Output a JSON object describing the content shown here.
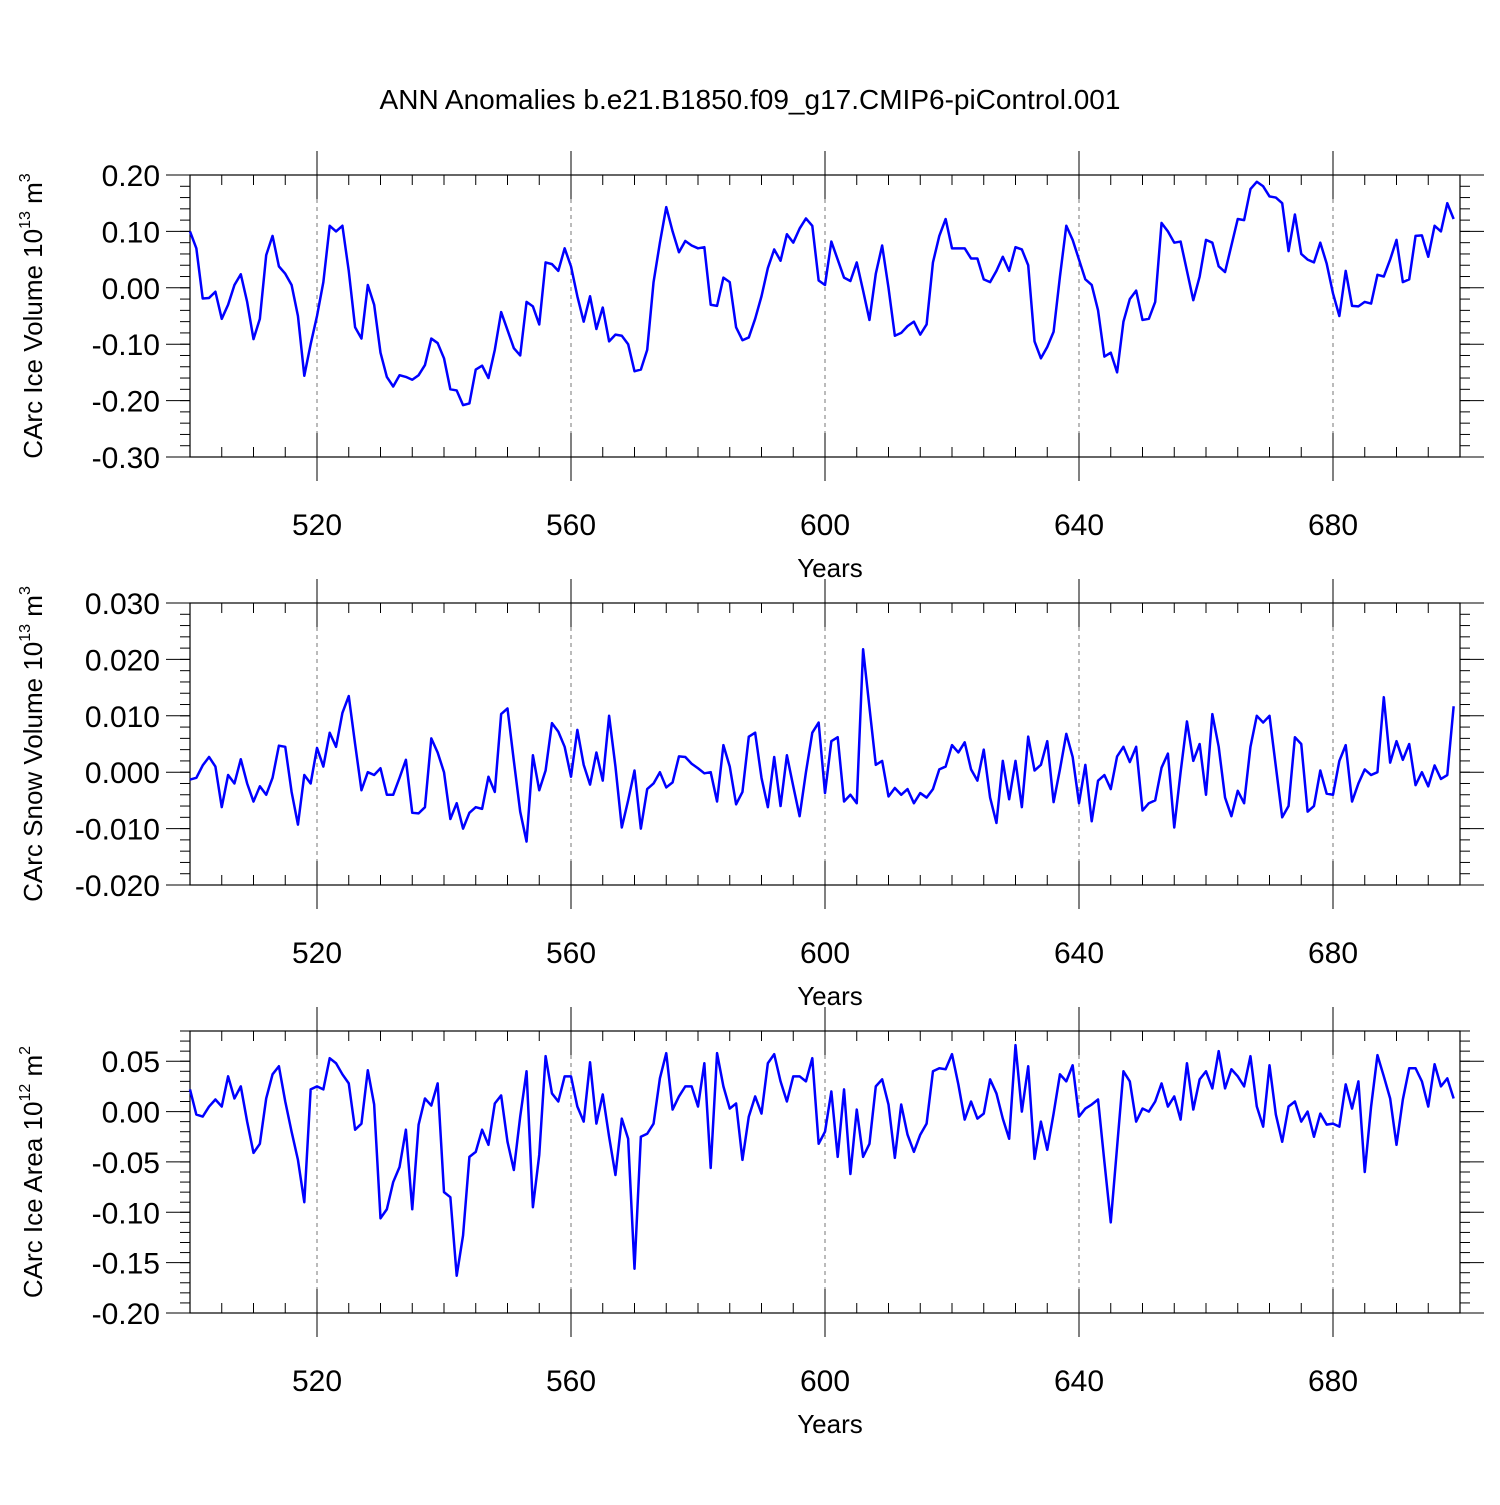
{
  "title": "ANN Anomalies b.e21.B1850.f09_g17.CMIP6-piControl.001",
  "chart_data": [
    {
      "type": "line",
      "id": "ice-volume",
      "ylabel_text": "CArc Ice Volume 10",
      "ylabel_exp": "13",
      "ylabel_unit": " m",
      "ylabel_unit_exp": "3",
      "xlabel": "Years",
      "xlim": [
        500,
        700
      ],
      "ylim": [
        -0.3,
        0.2
      ],
      "xticks": [
        520,
        560,
        600,
        640,
        680
      ],
      "yticks": [
        -0.3,
        -0.2,
        -0.1,
        0.0,
        0.1,
        0.2
      ],
      "ytick_labels": [
        "-0.30",
        "-0.20",
        "-0.10",
        "0.00",
        "0.10",
        "0.20"
      ],
      "color": "#0000ff",
      "x_start": 500,
      "values": [
        0.1,
        0.07,
        -0.019,
        -0.018,
        -0.007,
        -0.055,
        -0.03,
        0.005,
        0.024,
        -0.025,
        -0.091,
        -0.055,
        0.058,
        0.092,
        0.038,
        0.025,
        0.005,
        -0.05,
        -0.156,
        -0.1,
        -0.05,
        0.01,
        0.11,
        0.1,
        0.11,
        0.03,
        -0.07,
        -0.09,
        0.005,
        -0.03,
        -0.115,
        -0.158,
        -0.175,
        -0.155,
        -0.158,
        -0.163,
        -0.155,
        -0.137,
        -0.09,
        -0.098,
        -0.125,
        -0.18,
        -0.182,
        -0.208,
        -0.205,
        -0.145,
        -0.138,
        -0.16,
        -0.11,
        -0.043,
        -0.075,
        -0.107,
        -0.12,
        -0.025,
        -0.033,
        -0.065,
        0.045,
        0.042,
        0.03,
        0.07,
        0.038,
        -0.015,
        -0.06,
        -0.015,
        -0.073,
        -0.035,
        -0.095,
        -0.083,
        -0.085,
        -0.1,
        -0.148,
        -0.145,
        -0.11,
        0.01,
        0.08,
        0.143,
        0.1,
        0.063,
        0.083,
        0.075,
        0.07,
        0.072,
        -0.03,
        -0.032,
        0.018,
        0.01,
        -0.07,
        -0.093,
        -0.088,
        -0.055,
        -0.015,
        0.035,
        0.068,
        0.048,
        0.095,
        0.08,
        0.105,
        0.123,
        0.11,
        0.013,
        0.005,
        0.082,
        0.05,
        0.018,
        0.012,
        0.045,
        -0.005,
        -0.057,
        0.025,
        0.075,
        0.0,
        -0.085,
        -0.08,
        -0.068,
        -0.06,
        -0.083,
        -0.065,
        0.045,
        0.092,
        0.122,
        0.07,
        0.07,
        0.07,
        0.052,
        0.052,
        0.015,
        0.01,
        0.03,
        0.055,
        0.03,
        0.072,
        0.068,
        0.04,
        -0.095,
        -0.125,
        -0.105,
        -0.078,
        0.02,
        0.11,
        0.085,
        0.05,
        0.015,
        0.005,
        -0.04,
        -0.122,
        -0.115,
        -0.15,
        -0.06,
        -0.02,
        -0.005,
        -0.057,
        -0.055,
        -0.025,
        0.115,
        0.1,
        0.08,
        0.082,
        0.03,
        -0.022,
        0.02,
        0.085,
        0.08,
        0.038,
        0.028,
        0.075,
        0.122,
        0.12,
        0.175,
        0.188,
        0.18,
        0.162,
        0.16,
        0.15,
        0.065,
        0.13,
        0.06,
        0.05,
        0.045,
        0.08,
        0.043,
        -0.01,
        -0.05,
        0.03,
        -0.032,
        -0.033,
        -0.025,
        -0.028,
        0.023,
        0.02,
        0.05,
        0.085,
        0.01,
        0.015,
        0.092,
        0.093,
        0.055,
        0.11,
        0.1,
        0.15,
        0.122
      ]
    },
    {
      "type": "line",
      "id": "snow-volume",
      "ylabel_text": "CArc Snow Volume 10",
      "ylabel_exp": "13",
      "ylabel_unit": " m",
      "ylabel_unit_exp": "3",
      "xlabel": "Years",
      "xlim": [
        500,
        700
      ],
      "ylim": [
        -0.02,
        0.03
      ],
      "xticks": [
        520,
        560,
        600,
        640,
        680
      ],
      "yticks": [
        -0.02,
        -0.01,
        0.0,
        0.01,
        0.02,
        0.03
      ],
      "ytick_labels": [
        "-0.020",
        "-0.010",
        "0.000",
        "0.010",
        "0.020",
        "0.030"
      ],
      "color": "#0000ff",
      "x_start": 500,
      "values": [
        -0.0013,
        -0.001,
        0.0012,
        0.0027,
        0.001,
        -0.0062,
        -0.0005,
        -0.002,
        0.0023,
        -0.002,
        -0.0052,
        -0.0025,
        -0.004,
        -0.001,
        0.0047,
        0.0045,
        -0.0035,
        -0.0093,
        -0.0005,
        -0.002,
        0.0043,
        0.001,
        0.007,
        0.0045,
        0.0105,
        0.0135,
        0.005,
        -0.0032,
        0.0,
        -0.0005,
        0.0007,
        -0.004,
        -0.004,
        -0.001,
        0.0022,
        -0.0072,
        -0.0073,
        -0.0062,
        0.006,
        0.0035,
        0.0,
        -0.0083,
        -0.0055,
        -0.01,
        -0.0072,
        -0.0062,
        -0.0065,
        -0.0008,
        -0.0035,
        0.0103,
        0.0113,
        0.002,
        -0.007,
        -0.0123,
        0.003,
        -0.0032,
        0.0003,
        0.0087,
        0.0072,
        0.0045,
        -0.0008,
        0.0075,
        0.0013,
        -0.0022,
        0.0035,
        -0.0015,
        0.01,
        0.001,
        -0.0098,
        -0.005,
        0.0003,
        -0.01,
        -0.003,
        -0.002,
        0.0,
        -0.0027,
        -0.0018,
        0.0028,
        0.0027,
        0.0015,
        0.0007,
        -0.0002,
        0.0,
        -0.0052,
        0.0048,
        0.001,
        -0.0057,
        -0.0035,
        0.0063,
        0.007,
        -0.001,
        -0.0062,
        0.0027,
        -0.006,
        0.003,
        -0.0025,
        -0.0078,
        0.0,
        0.007,
        0.0088,
        -0.0037,
        0.0055,
        0.0062,
        -0.0052,
        -0.004,
        -0.0055,
        0.0218,
        0.0115,
        0.0013,
        0.002,
        -0.0043,
        -0.0028,
        -0.004,
        -0.003,
        -0.0055,
        -0.0037,
        -0.0045,
        -0.003,
        0.0005,
        0.001,
        0.0048,
        0.0035,
        0.0053,
        0.0005,
        -0.0015,
        0.004,
        -0.0045,
        -0.009,
        0.002,
        -0.0048,
        0.002,
        -0.0062,
        0.0063,
        0.0003,
        0.0013,
        0.0055,
        -0.0053,
        0.0005,
        0.0068,
        0.0027,
        -0.0055,
        0.0013,
        -0.0087,
        -0.0015,
        -0.0005,
        -0.003,
        0.0028,
        0.0045,
        0.0018,
        0.0045,
        -0.0068,
        -0.0055,
        -0.005,
        0.0008,
        0.0033,
        -0.0098,
        0.0,
        0.009,
        0.002,
        0.005,
        -0.004,
        0.0103,
        0.0045,
        -0.0045,
        -0.0078,
        -0.0033,
        -0.0055,
        0.0045,
        0.01,
        0.0088,
        0.01,
        0.001,
        -0.008,
        -0.006,
        0.0062,
        0.005,
        -0.007,
        -0.006,
        0.0003,
        -0.0038,
        -0.004,
        0.002,
        0.0048,
        -0.0052,
        -0.002,
        0.0005,
        -0.0005,
        0.0,
        0.0133,
        0.0017,
        0.0055,
        0.0022,
        0.005,
        -0.0023,
        0.0,
        -0.0025,
        0.0012,
        -0.0012,
        -0.0005,
        0.0117
      ]
    },
    {
      "type": "line",
      "id": "ice-area",
      "ylabel_text": "CArc Ice Area 10",
      "ylabel_exp": "12",
      "ylabel_unit": " m",
      "ylabel_unit_exp": "2",
      "xlabel": "Years",
      "xlim": [
        500,
        700
      ],
      "ylim": [
        -0.2,
        0.08
      ],
      "xticks": [
        520,
        560,
        600,
        640,
        680
      ],
      "yticks": [
        -0.2,
        -0.15,
        -0.1,
        -0.05,
        0.0,
        0.05
      ],
      "ytick_labels": [
        "-0.20",
        "-0.15",
        "-0.10",
        "-0.05",
        "0.00",
        "0.05"
      ],
      "color": "#0000ff",
      "x_start": 500,
      "values": [
        0.022,
        -0.003,
        -0.005,
        0.005,
        0.012,
        0.005,
        0.035,
        0.013,
        0.025,
        -0.01,
        -0.041,
        -0.032,
        0.013,
        0.037,
        0.045,
        0.01,
        -0.02,
        -0.048,
        -0.09,
        0.022,
        0.025,
        0.022,
        0.053,
        0.048,
        0.037,
        0.028,
        -0.018,
        -0.012,
        0.041,
        0.007,
        -0.106,
        -0.097,
        -0.07,
        -0.055,
        -0.018,
        -0.097,
        -0.013,
        0.013,
        0.006,
        0.028,
        -0.08,
        -0.085,
        -0.163,
        -0.123,
        -0.045,
        -0.04,
        -0.018,
        -0.033,
        0.008,
        0.016,
        -0.03,
        -0.058,
        -0.005,
        0.04,
        -0.095,
        -0.043,
        0.055,
        0.018,
        0.01,
        0.035,
        0.035,
        0.005,
        -0.01,
        0.049,
        -0.012,
        0.017,
        -0.025,
        -0.063,
        -0.007,
        -0.027,
        -0.156,
        -0.025,
        -0.022,
        -0.012,
        0.033,
        0.058,
        0.002,
        0.015,
        0.025,
        0.025,
        0.005,
        0.048,
        -0.056,
        0.058,
        0.025,
        0.003,
        0.008,
        -0.048,
        -0.005,
        0.015,
        -0.002,
        0.048,
        0.057,
        0.03,
        0.01,
        0.035,
        0.035,
        0.03,
        0.053,
        -0.032,
        -0.02,
        0.02,
        -0.045,
        0.022,
        -0.062,
        0.002,
        -0.045,
        -0.032,
        0.025,
        0.032,
        0.007,
        -0.046,
        0.007,
        -0.023,
        -0.04,
        -0.023,
        -0.012,
        0.04,
        0.043,
        0.042,
        0.057,
        0.027,
        -0.008,
        0.01,
        -0.007,
        -0.002,
        0.032,
        0.018,
        -0.007,
        -0.027,
        0.066,
        0.0,
        0.045,
        -0.047,
        -0.01,
        -0.038,
        -0.002,
        0.037,
        0.03,
        0.046,
        -0.005,
        0.003,
        0.007,
        0.012,
        -0.05,
        -0.11,
        -0.035,
        0.04,
        0.03,
        -0.01,
        0.003,
        0.0,
        0.01,
        0.028,
        0.005,
        0.015,
        -0.008,
        0.048,
        0.002,
        0.032,
        0.04,
        0.023,
        0.06,
        0.023,
        0.042,
        0.035,
        0.025,
        0.055,
        0.005,
        -0.015,
        0.046,
        -0.003,
        -0.03,
        0.005,
        0.01,
        -0.01,
        0.0,
        -0.025,
        -0.002,
        -0.013,
        -0.012,
        -0.015,
        0.027,
        0.003,
        0.03,
        -0.06,
        0.005,
        0.056,
        0.035,
        0.013,
        -0.033,
        0.012,
        0.043,
        0.043,
        0.03,
        0.005,
        0.047,
        0.025,
        0.033,
        0.013
      ]
    }
  ]
}
